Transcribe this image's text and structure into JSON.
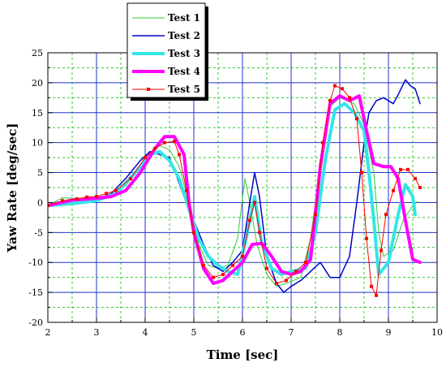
{
  "chart_data": {
    "type": "line",
    "xlabel": "Time [sec]",
    "ylabel": "Yaw Rate [deg/sec]",
    "xlim": [
      2,
      10
    ],
    "ylim": [
      -20,
      25
    ],
    "x_ticks": [
      "2",
      "3",
      "4",
      "5",
      "6",
      "7",
      "8",
      "9",
      "10"
    ],
    "y_ticks": [
      "-20",
      "-15",
      "-10",
      "-5",
      "0",
      "5",
      "10",
      "15",
      "20",
      "25"
    ],
    "grid": true,
    "legend_position": "top-left",
    "series": [
      {
        "name": "Test 1",
        "color": "#33cc33",
        "style": "thin",
        "points": [
          [
            2.0,
            -0.5
          ],
          [
            2.3,
            0.8
          ],
          [
            2.8,
            0.6
          ],
          [
            3.2,
            0.9
          ],
          [
            3.6,
            2.8
          ],
          [
            3.9,
            6.0
          ],
          [
            4.1,
            8.2
          ],
          [
            4.3,
            9.5
          ],
          [
            4.5,
            8.8
          ],
          [
            4.7,
            6.0
          ],
          [
            4.9,
            0.0
          ],
          [
            5.1,
            -7.0
          ],
          [
            5.3,
            -10.5
          ],
          [
            5.5,
            -11.0
          ],
          [
            5.7,
            -10.5
          ],
          [
            5.9,
            -6.0
          ],
          [
            6.05,
            4.0
          ],
          [
            6.15,
            0.0
          ],
          [
            6.3,
            -7.0
          ],
          [
            6.5,
            -12.0
          ],
          [
            6.7,
            -14.0
          ],
          [
            6.9,
            -13.5
          ],
          [
            7.2,
            -12.5
          ],
          [
            7.4,
            -6.0
          ],
          [
            7.6,
            6.0
          ],
          [
            7.8,
            16.0
          ],
          [
            8.0,
            17.5
          ],
          [
            8.3,
            16.5
          ],
          [
            8.5,
            13.0
          ],
          [
            8.7,
            5.0
          ],
          [
            8.8,
            -5.0
          ],
          [
            8.9,
            -9.0
          ],
          [
            9.1,
            -8.0
          ],
          [
            9.3,
            -3.0
          ],
          [
            9.5,
            -0.5
          ],
          [
            9.6,
            0.2
          ]
        ]
      },
      {
        "name": "Test 2",
        "color": "#0000cc",
        "style": "medium",
        "points": [
          [
            2.0,
            -0.5
          ],
          [
            2.5,
            0.3
          ],
          [
            3.0,
            0.4
          ],
          [
            3.3,
            1.5
          ],
          [
            3.6,
            4.0
          ],
          [
            3.9,
            7.0
          ],
          [
            4.1,
            8.5
          ],
          [
            4.3,
            8.0
          ],
          [
            4.5,
            7.5
          ],
          [
            4.6,
            5.5
          ],
          [
            4.8,
            1.0
          ],
          [
            5.0,
            -3.0
          ],
          [
            5.2,
            -7.0
          ],
          [
            5.4,
            -10.5
          ],
          [
            5.6,
            -11.5
          ],
          [
            5.8,
            -10.0
          ],
          [
            6.0,
            -8.0
          ],
          [
            6.15,
            0.0
          ],
          [
            6.25,
            5.0
          ],
          [
            6.35,
            1.0
          ],
          [
            6.5,
            -9.0
          ],
          [
            6.7,
            -13.5
          ],
          [
            6.85,
            -15.0
          ],
          [
            7.0,
            -14.0
          ],
          [
            7.2,
            -13.0
          ],
          [
            7.4,
            -11.5
          ],
          [
            7.6,
            -10.0
          ],
          [
            7.8,
            -12.5
          ],
          [
            8.0,
            -12.5
          ],
          [
            8.2,
            -9.0
          ],
          [
            8.35,
            0.0
          ],
          [
            8.5,
            10.0
          ],
          [
            8.6,
            15.0
          ],
          [
            8.75,
            17.0
          ],
          [
            8.9,
            17.5
          ],
          [
            9.1,
            16.5
          ],
          [
            9.2,
            18.0
          ],
          [
            9.35,
            20.5
          ],
          [
            9.45,
            19.5
          ],
          [
            9.55,
            19.0
          ],
          [
            9.65,
            16.5
          ]
        ]
      },
      {
        "name": "Test 3",
        "color": "#33e6e6",
        "style": "thick",
        "points": [
          [
            2.0,
            -0.5
          ],
          [
            2.5,
            -0.2
          ],
          [
            3.0,
            0.3
          ],
          [
            3.4,
            1.5
          ],
          [
            3.8,
            5.0
          ],
          [
            4.1,
            8.0
          ],
          [
            4.3,
            8.5
          ],
          [
            4.5,
            7.0
          ],
          [
            4.7,
            4.0
          ],
          [
            4.9,
            -1.0
          ],
          [
            5.1,
            -6.0
          ],
          [
            5.3,
            -9.0
          ],
          [
            5.5,
            -10.5
          ],
          [
            5.7,
            -11.5
          ],
          [
            5.9,
            -12.0
          ],
          [
            6.05,
            -7.0
          ],
          [
            6.25,
            1.0
          ],
          [
            6.4,
            -7.0
          ],
          [
            6.6,
            -11.0
          ],
          [
            6.8,
            -12.0
          ],
          [
            7.0,
            -11.5
          ],
          [
            7.3,
            -11.0
          ],
          [
            7.5,
            -5.0
          ],
          [
            7.7,
            7.0
          ],
          [
            7.9,
            15.5
          ],
          [
            8.1,
            16.5
          ],
          [
            8.3,
            15.0
          ],
          [
            8.5,
            12.0
          ],
          [
            8.6,
            5.0
          ],
          [
            8.7,
            -3.0
          ],
          [
            8.8,
            -12.0
          ],
          [
            9.0,
            -10.0
          ],
          [
            9.2,
            -2.0
          ],
          [
            9.35,
            3.0
          ],
          [
            9.5,
            1.0
          ],
          [
            9.55,
            -2.0
          ]
        ]
      },
      {
        "name": "Test 4",
        "color": "#ff00ff",
        "style": "thick",
        "points": [
          [
            2.0,
            -0.5
          ],
          [
            2.5,
            0.4
          ],
          [
            3.0,
            0.7
          ],
          [
            3.3,
            1.0
          ],
          [
            3.6,
            2.0
          ],
          [
            3.9,
            5.0
          ],
          [
            4.2,
            9.0
          ],
          [
            4.4,
            11.0
          ],
          [
            4.6,
            11.0
          ],
          [
            4.8,
            8.0
          ],
          [
            4.9,
            0.0
          ],
          [
            5.0,
            -5.0
          ],
          [
            5.2,
            -11.0
          ],
          [
            5.4,
            -13.5
          ],
          [
            5.6,
            -13.0
          ],
          [
            5.8,
            -11.5
          ],
          [
            6.0,
            -10.0
          ],
          [
            6.2,
            -7.0
          ],
          [
            6.4,
            -6.8
          ],
          [
            6.6,
            -9.0
          ],
          [
            6.8,
            -11.5
          ],
          [
            7.0,
            -12.0
          ],
          [
            7.2,
            -11.5
          ],
          [
            7.4,
            -9.5
          ],
          [
            7.6,
            6.0
          ],
          [
            7.8,
            16.5
          ],
          [
            8.0,
            17.8
          ],
          [
            8.2,
            17.0
          ],
          [
            8.4,
            17.8
          ],
          [
            8.55,
            12.0
          ],
          [
            8.7,
            6.5
          ],
          [
            8.9,
            6.0
          ],
          [
            9.05,
            6.0
          ],
          [
            9.2,
            4.0
          ],
          [
            9.35,
            -3.0
          ],
          [
            9.5,
            -9.5
          ],
          [
            9.65,
            -10.0
          ]
        ]
      },
      {
        "name": "Test 5",
        "color": "#ff0000",
        "style": "markers",
        "points": [
          [
            2.0,
            -0.5
          ],
          [
            2.3,
            0.3
          ],
          [
            2.6,
            0.6
          ],
          [
            2.8,
            0.9
          ],
          [
            3.0,
            1.0
          ],
          [
            3.2,
            1.5
          ],
          [
            3.4,
            2.0
          ],
          [
            3.7,
            4.0
          ],
          [
            4.0,
            7.5
          ],
          [
            4.2,
            9.0
          ],
          [
            4.4,
            10.0
          ],
          [
            4.6,
            10.2
          ],
          [
            4.7,
            8.0
          ],
          [
            4.85,
            2.0
          ],
          [
            5.0,
            -5.0
          ],
          [
            5.2,
            -10.5
          ],
          [
            5.4,
            -12.5
          ],
          [
            5.6,
            -12.0
          ],
          [
            5.8,
            -10.5
          ],
          [
            6.0,
            -9.0
          ],
          [
            6.15,
            -3.0
          ],
          [
            6.25,
            0.0
          ],
          [
            6.35,
            -5.0
          ],
          [
            6.5,
            -11.0
          ],
          [
            6.7,
            -13.5
          ],
          [
            6.9,
            -13.0
          ],
          [
            7.1,
            -11.5
          ],
          [
            7.3,
            -10.0
          ],
          [
            7.5,
            -2.0
          ],
          [
            7.65,
            10.0
          ],
          [
            7.8,
            17.0
          ],
          [
            7.9,
            19.5
          ],
          [
            8.05,
            19.0
          ],
          [
            8.2,
            17.5
          ],
          [
            8.35,
            14.0
          ],
          [
            8.45,
            5.0
          ],
          [
            8.55,
            -6.0
          ],
          [
            8.65,
            -14.0
          ],
          [
            8.75,
            -15.5
          ],
          [
            8.85,
            -8.0
          ],
          [
            8.95,
            -2.0
          ],
          [
            9.1,
            2.0
          ],
          [
            9.25,
            5.5
          ],
          [
            9.4,
            5.5
          ],
          [
            9.55,
            4.0
          ],
          [
            9.65,
            2.5
          ]
        ]
      }
    ]
  }
}
